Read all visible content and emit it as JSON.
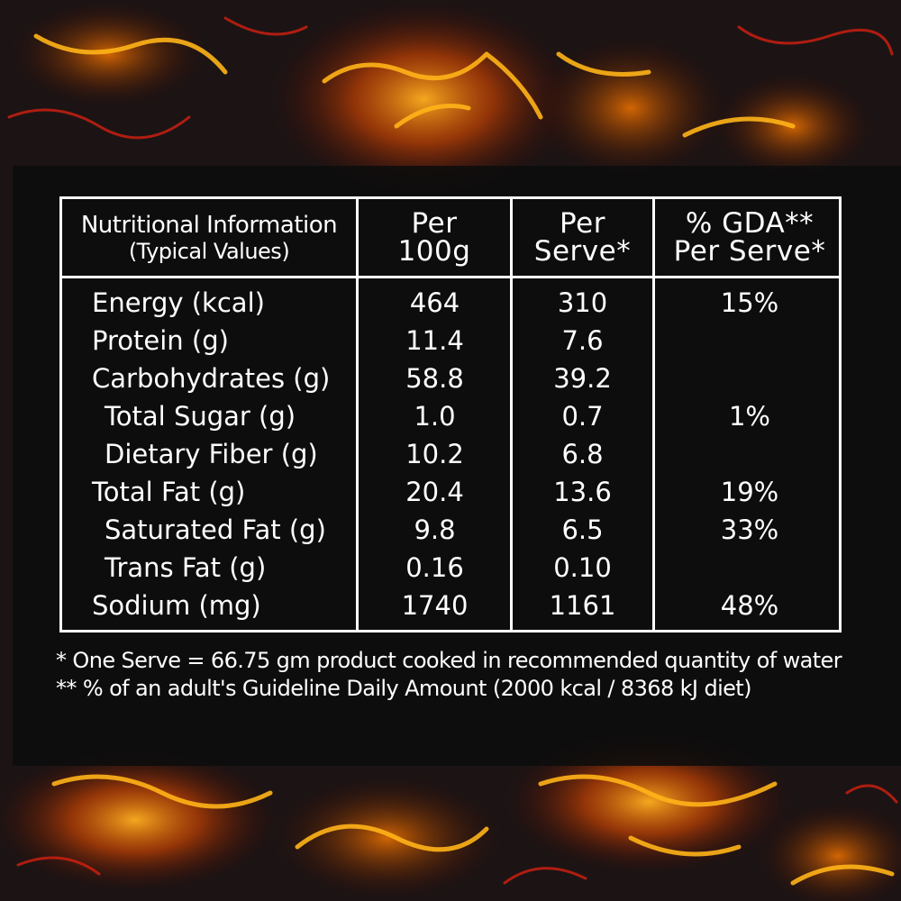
{
  "header": {
    "col1_line1": "Nutritional Information",
    "col1_line2": "(Typical Values)",
    "col2_line1": "Per",
    "col2_line2": "100g",
    "col3_line1": "Per",
    "col3_line2": "Serve*",
    "col4_line1": "% GDA**",
    "col4_line2": "Per Serve*"
  },
  "rows": [
    {
      "label": "Energy (kcal)",
      "per100g": "464",
      "perServe": "310",
      "gda": "15%"
    },
    {
      "label": "Protein (g)",
      "per100g": "11.4",
      "perServe": "7.6",
      "gda": ""
    },
    {
      "label": "Carbohydrates (g)",
      "per100g": "58.8",
      "perServe": "39.2",
      "gda": ""
    },
    {
      "label": "Total Sugar (g)",
      "per100g": "1.0",
      "perServe": "0.7",
      "gda": "1%"
    },
    {
      "label": "Dietary Fiber (g)",
      "per100g": "10.2",
      "perServe": "6.8",
      "gda": ""
    },
    {
      "label": "Total Fat (g)",
      "per100g": "20.4",
      "perServe": "13.6",
      "gda": "19%"
    },
    {
      "label": "Saturated Fat (g)",
      "per100g": "9.8",
      "perServe": "6.5",
      "gda": "33%"
    },
    {
      "label": "Trans Fat (g)",
      "per100g": "0.16",
      "perServe": "0.10",
      "gda": ""
    },
    {
      "label": "Sodium (mg)",
      "per100g": "1740",
      "perServe": "1161",
      "gda": "48%"
    }
  ],
  "footnotes": {
    "serve": "* One Serve = 66.75 gm product cooked in recommended quantity of water",
    "gda": "** % of an adult's Guideline Daily Amount (2000 kcal / 8368 kJ diet)"
  },
  "colors": {
    "text": "#ffffff",
    "panel": "#0c0c0c",
    "lava_glow": "#ff8a00",
    "lava_hot": "#ffd21a",
    "rock": "#1a1212"
  }
}
